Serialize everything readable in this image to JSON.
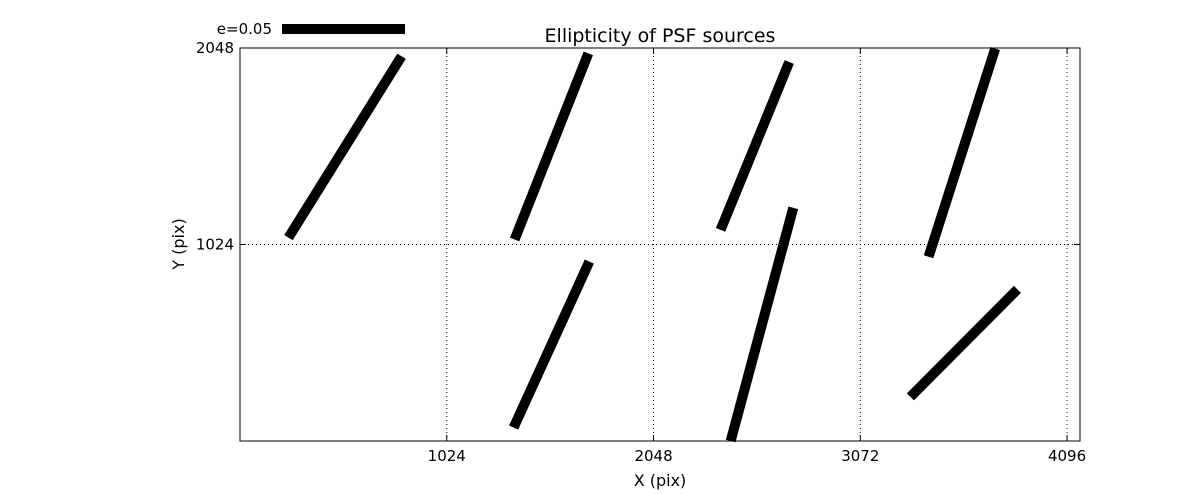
{
  "chart_data": {
    "type": "scatter",
    "subtype": "whisker",
    "title": "Ellipticity of PSF sources",
    "xlabel": "X (pix)",
    "ylabel": "Y (pix)",
    "xlim": [
      0,
      4160
    ],
    "ylim": [
      0,
      2048
    ],
    "xticks": [
      1024,
      2048,
      3072,
      4096
    ],
    "yticks": [
      1024,
      2048
    ],
    "xtick_labels": [
      "1024",
      "2048",
      "3072",
      "4096"
    ],
    "ytick_labels": [
      "1024",
      "2048"
    ],
    "grid": "dotted",
    "key": {
      "label": "e=0.05",
      "ellipticity": 0.05,
      "placement": "top-left above axes"
    },
    "segments": [
      {
        "x1": 240,
        "y1": 1060,
        "x2": 800,
        "y2": 2005
      },
      {
        "x1": 1360,
        "y1": 1050,
        "x2": 1725,
        "y2": 2020
      },
      {
        "x1": 2380,
        "y1": 1100,
        "x2": 2720,
        "y2": 1975
      },
      {
        "x1": 3410,
        "y1": 960,
        "x2": 3740,
        "y2": 2045
      },
      {
        "x1": 1355,
        "y1": 70,
        "x2": 1730,
        "y2": 935
      },
      {
        "x1": 2430,
        "y1": 0,
        "x2": 2740,
        "y2": 1215
      },
      {
        "x1": 3320,
        "y1": 230,
        "x2": 3850,
        "y2": 790
      }
    ]
  }
}
